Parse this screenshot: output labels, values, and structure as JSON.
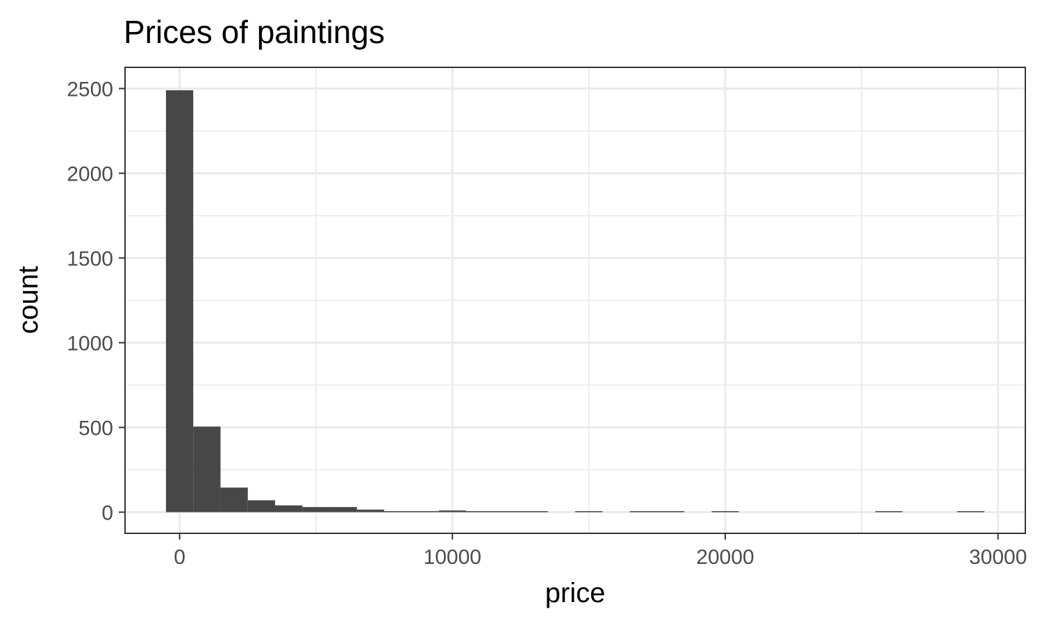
{
  "chart_data": {
    "type": "bar",
    "title": "Prices of paintings",
    "xlabel": "price",
    "ylabel": "count",
    "xlim": [
      -2000,
      31000
    ],
    "ylim": [
      -125,
      2625
    ],
    "x_ticks": [
      0,
      10000,
      20000,
      30000
    ],
    "y_ticks": [
      0,
      500,
      1000,
      1500,
      2000,
      2500
    ],
    "x_tick_labels": [
      "0",
      "10000",
      "20000",
      "30000"
    ],
    "y_tick_labels": [
      "0",
      "500",
      "1000",
      "1500",
      "2000",
      "2500"
    ],
    "bin_width": 1000,
    "grid": true,
    "legend": "none",
    "colors": {
      "bar": "#474747",
      "grid": "#ebebeb",
      "border": "#333333"
    },
    "bins": [
      {
        "x_start": -500,
        "x_end": 500,
        "count": 2490
      },
      {
        "x_start": 500,
        "x_end": 1500,
        "count": 505
      },
      {
        "x_start": 1500,
        "x_end": 2500,
        "count": 145
      },
      {
        "x_start": 2500,
        "x_end": 3500,
        "count": 70
      },
      {
        "x_start": 3500,
        "x_end": 4500,
        "count": 40
      },
      {
        "x_start": 4500,
        "x_end": 5500,
        "count": 30
      },
      {
        "x_start": 5500,
        "x_end": 6500,
        "count": 30
      },
      {
        "x_start": 6500,
        "x_end": 7500,
        "count": 15
      },
      {
        "x_start": 7500,
        "x_end": 8500,
        "count": 6
      },
      {
        "x_start": 8500,
        "x_end": 9500,
        "count": 6
      },
      {
        "x_start": 9500,
        "x_end": 10500,
        "count": 10
      },
      {
        "x_start": 10500,
        "x_end": 11500,
        "count": 3
      },
      {
        "x_start": 11500,
        "x_end": 12500,
        "count": 3
      },
      {
        "x_start": 12500,
        "x_end": 13500,
        "count": 3
      },
      {
        "x_start": 13500,
        "x_end": 14500,
        "count": 0
      },
      {
        "x_start": 14500,
        "x_end": 15500,
        "count": 3
      },
      {
        "x_start": 15500,
        "x_end": 16500,
        "count": 0
      },
      {
        "x_start": 16500,
        "x_end": 17500,
        "count": 2
      },
      {
        "x_start": 17500,
        "x_end": 18500,
        "count": 2
      },
      {
        "x_start": 18500,
        "x_end": 19500,
        "count": 0
      },
      {
        "x_start": 19500,
        "x_end": 20500,
        "count": 2
      },
      {
        "x_start": 20500,
        "x_end": 21500,
        "count": 0
      },
      {
        "x_start": 21500,
        "x_end": 22500,
        "count": 0
      },
      {
        "x_start": 22500,
        "x_end": 23500,
        "count": 0
      },
      {
        "x_start": 23500,
        "x_end": 24500,
        "count": 0
      },
      {
        "x_start": 24500,
        "x_end": 25500,
        "count": 0
      },
      {
        "x_start": 25500,
        "x_end": 26500,
        "count": 1
      },
      {
        "x_start": 26500,
        "x_end": 27500,
        "count": 0
      },
      {
        "x_start": 27500,
        "x_end": 28500,
        "count": 0
      },
      {
        "x_start": 28500,
        "x_end": 29500,
        "count": 1
      }
    ]
  }
}
